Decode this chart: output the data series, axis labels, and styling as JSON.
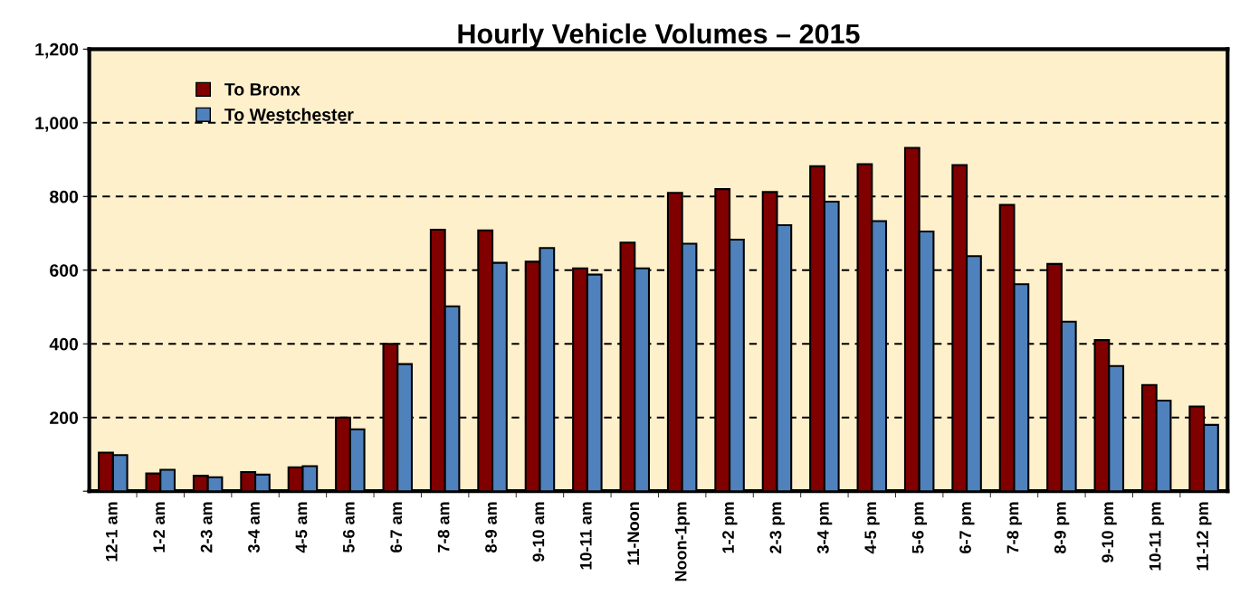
{
  "chart_data": {
    "type": "bar",
    "title": "Hourly Vehicle Volumes – 2015",
    "categories": [
      "12-1 am",
      "1-2 am",
      "2-3 am",
      "3-4 am",
      "4-5 am",
      "5-6 am",
      "6-7 am",
      "7-8 am",
      "8-9 am",
      "9-10 am",
      "10-11 am",
      "11-Noon",
      "Noon-1pm",
      "1-2 pm",
      "2-3 pm",
      "3-4 pm",
      "4-5 pm",
      "5-6 pm",
      "6-7 pm",
      "7-8 pm",
      "8-9 pm",
      "9-10 pm",
      "10-11 pm",
      "11-12 pm"
    ],
    "series": [
      {
        "name": "To Bronx",
        "color": "#800000",
        "values": [
          105,
          48,
          42,
          52,
          65,
          200,
          400,
          710,
          708,
          623,
          605,
          675,
          810,
          820,
          812,
          882,
          888,
          932,
          885,
          777,
          617,
          410,
          288,
          230
        ]
      },
      {
        "name": "To Westchester",
        "color": "#4f81bd",
        "values": [
          98,
          58,
          38,
          45,
          68,
          168,
          345,
          502,
          620,
          660,
          588,
          605,
          672,
          683,
          722,
          786,
          733,
          705,
          638,
          562,
          460,
          340,
          246,
          180
        ]
      }
    ],
    "ylim": [
      0,
      1200
    ],
    "yticks": [
      {
        "value": 0,
        "label": null
      },
      200,
      400,
      600,
      800,
      {
        "value": 1000,
        "label": "1,000"
      },
      {
        "value": 1200,
        "label": "1,200"
      }
    ],
    "grid": "y",
    "legend": "top left"
  }
}
